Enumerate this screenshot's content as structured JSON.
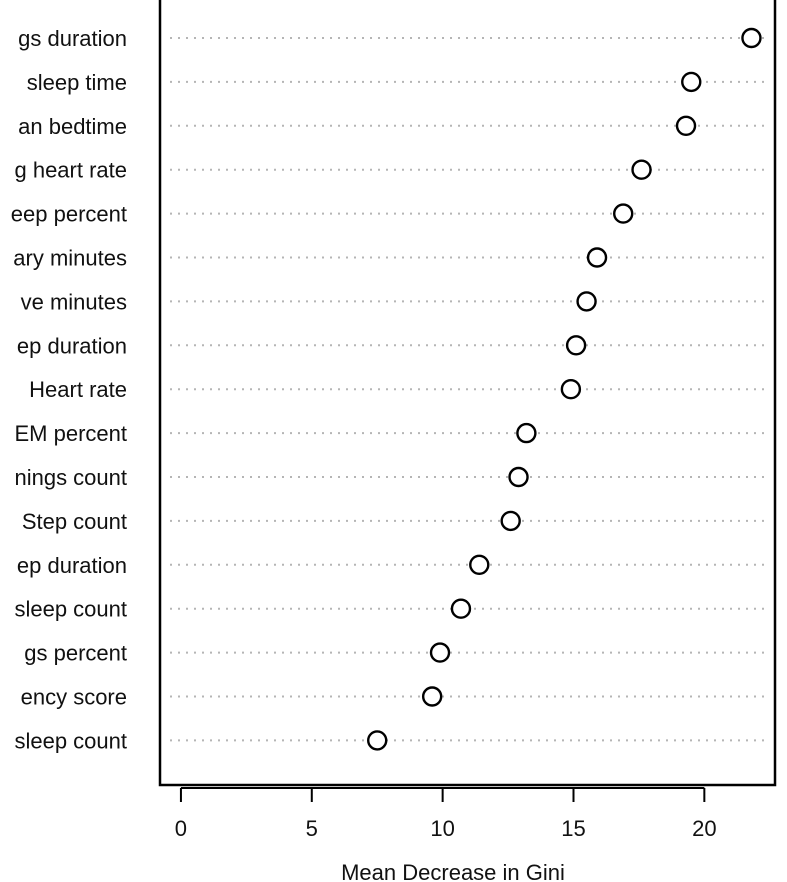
{
  "chart_data": {
    "type": "scatter",
    "xlabel": "Mean Decrease in Gini",
    "xlim": [
      -0.8,
      22.7
    ],
    "xticks": [
      0,
      5,
      10,
      15,
      20
    ],
    "grid": false,
    "categories": [
      "gs duration",
      "sleep time",
      "an bedtime",
      "g heart rate",
      "eep percent",
      "ary minutes",
      "ve minutes",
      "ep duration",
      "Heart rate",
      "EM percent",
      "nings count",
      "Step count",
      "ep duration",
      "sleep count",
      "gs percent",
      "ency score",
      "sleep count"
    ],
    "values": [
      21.8,
      19.5,
      19.3,
      17.6,
      16.9,
      15.9,
      15.5,
      15.1,
      14.9,
      13.2,
      12.9,
      12.6,
      11.4,
      10.7,
      9.9,
      9.6,
      7.5
    ]
  }
}
